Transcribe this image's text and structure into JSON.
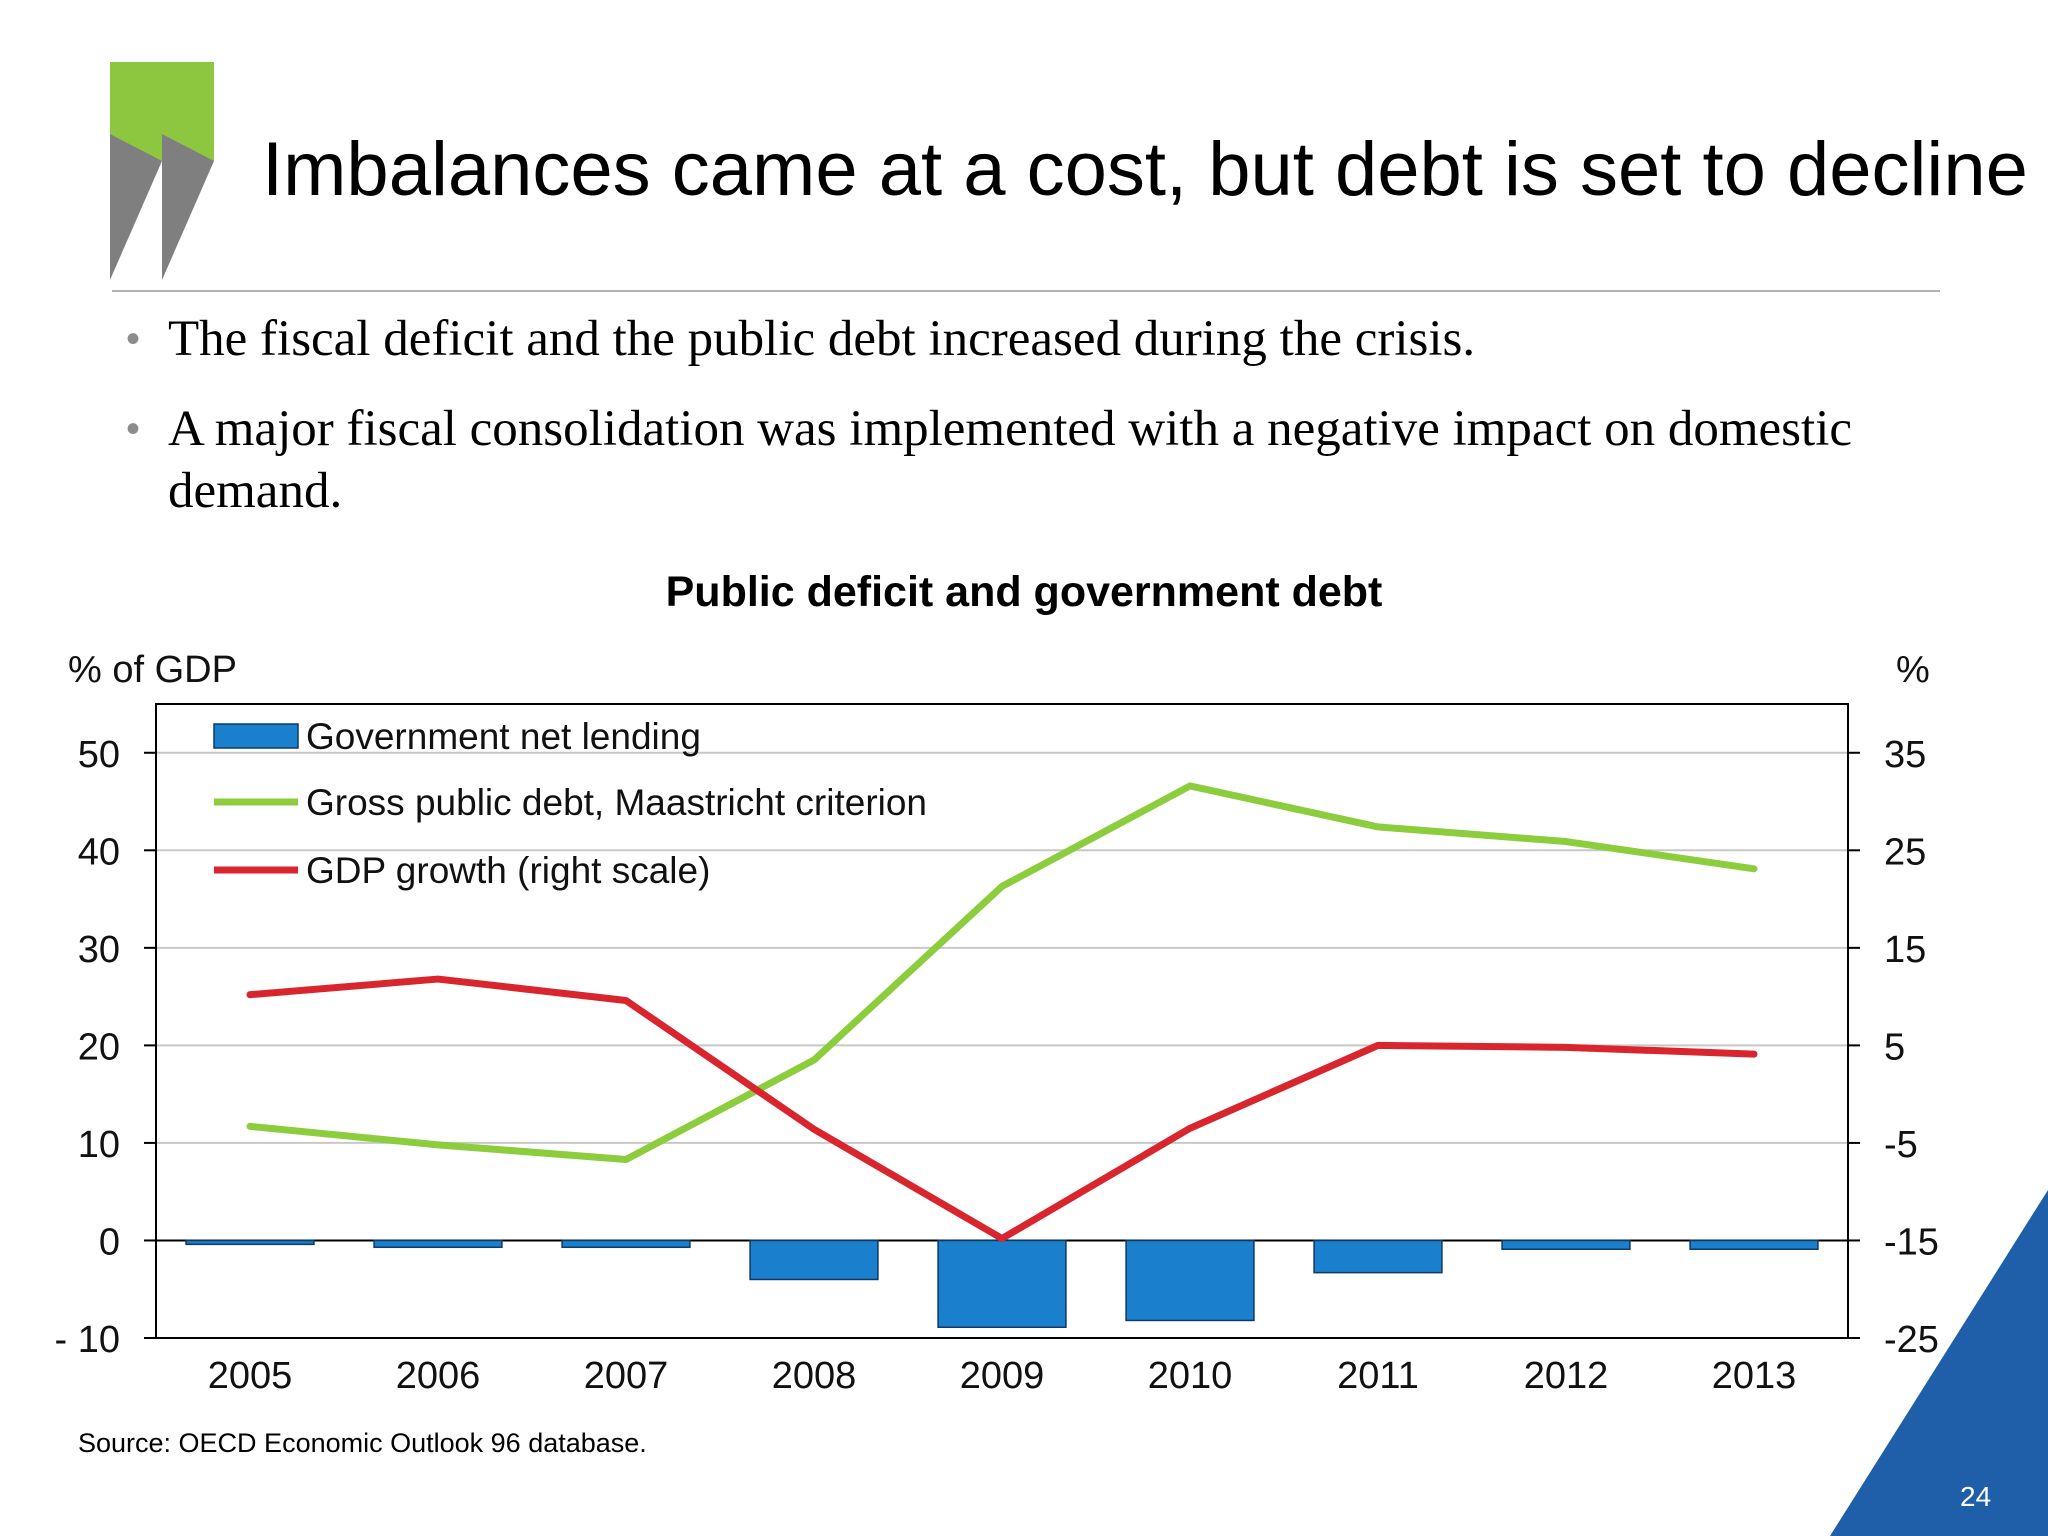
{
  "slide": {
    "title": "Imbalances came at a cost, but debt is set to decline",
    "bullets": [
      "The fiscal deficit and the public debt increased during the crisis.",
      "A major fiscal consolidation was implemented with a negative impact on domestic demand."
    ],
    "source": "Source: OECD Economic Outlook 96 database.",
    "page_number": "24",
    "logo_icon": "chevrons-logo-icon",
    "colors": {
      "logo_green": "#8dc63f",
      "logo_grey": "#7f7f7f",
      "corner_blue": "#1f5ea8"
    }
  },
  "chart_data": {
    "type": "bar",
    "title": "Public deficit and government debt",
    "left_axis_label": "% of GDP",
    "right_axis_label": "%",
    "categories": [
      "2005",
      "2006",
      "2007",
      "2008",
      "2009",
      "2010",
      "2011",
      "2012",
      "2013"
    ],
    "ylim": [
      -10,
      55
    ],
    "yticks": [
      "50",
      "40",
      "30",
      "20",
      "10",
      "0",
      "- 10"
    ],
    "y2lim": [
      -25,
      40
    ],
    "y2ticks": [
      "35",
      "25",
      "15",
      "5",
      "-5",
      "-15",
      "-25"
    ],
    "grid": true,
    "legend_position": "top-left",
    "series": [
      {
        "name": "Government net lending",
        "type": "bar",
        "axis": "left",
        "color": "#1a7fcc",
        "values": [
          -0.4,
          -0.7,
          -0.7,
          -4.0,
          -8.9,
          -8.2,
          -3.3,
          -0.9,
          -0.9
        ]
      },
      {
        "name": "Gross public debt, Maastricht criterion",
        "type": "line",
        "axis": "left",
        "color": "#8ccd3d",
        "values": [
          11.7,
          9.8,
          8.3,
          18.5,
          36.3,
          46.6,
          42.4,
          40.9,
          38.1
        ]
      },
      {
        "name": "GDP growth (right scale)",
        "type": "line",
        "axis": "right",
        "color": "#d9262e",
        "values": [
          10.2,
          11.8,
          9.6,
          -3.6,
          -14.8,
          -3.5,
          5.0,
          4.8,
          4.1
        ]
      }
    ]
  }
}
